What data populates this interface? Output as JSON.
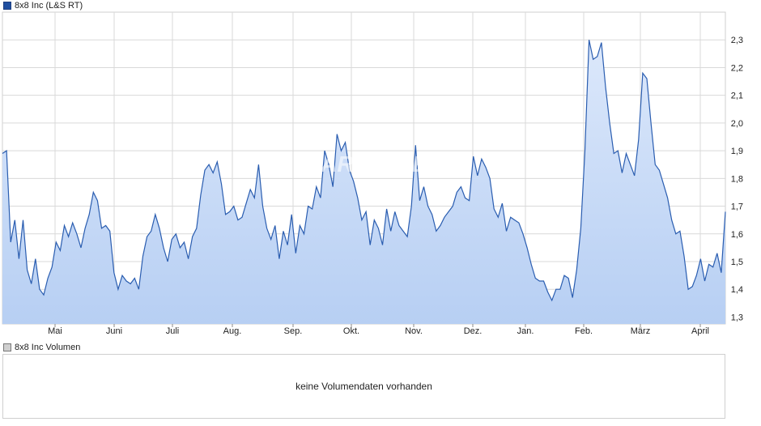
{
  "chart_data": {
    "type": "area",
    "series": [
      {
        "name": "8x8 Inc (L&S RT)",
        "values": [
          1.89,
          1.9,
          1.57,
          1.65,
          1.51,
          1.65,
          1.47,
          1.42,
          1.51,
          1.4,
          1.38,
          1.44,
          1.48,
          1.57,
          1.54,
          1.63,
          1.59,
          1.64,
          1.6,
          1.55,
          1.62,
          1.67,
          1.75,
          1.72,
          1.62,
          1.63,
          1.61,
          1.46,
          1.4,
          1.45,
          1.43,
          1.42,
          1.44,
          1.4,
          1.52,
          1.59,
          1.61,
          1.67,
          1.62,
          1.55,
          1.5,
          1.58,
          1.6,
          1.55,
          1.57,
          1.51,
          1.59,
          1.62,
          1.74,
          1.83,
          1.85,
          1.82,
          1.86,
          1.78,
          1.67,
          1.68,
          1.7,
          1.65,
          1.66,
          1.71,
          1.76,
          1.73,
          1.85,
          1.7,
          1.62,
          1.58,
          1.63,
          1.51,
          1.61,
          1.56,
          1.67,
          1.53,
          1.63,
          1.6,
          1.7,
          1.69,
          1.77,
          1.73,
          1.9,
          1.85,
          1.77,
          1.96,
          1.9,
          1.93,
          1.83,
          1.79,
          1.73,
          1.65,
          1.68,
          1.56,
          1.65,
          1.62,
          1.56,
          1.69,
          1.61,
          1.68,
          1.63,
          1.61,
          1.59,
          1.7,
          1.92,
          1.72,
          1.77,
          1.7,
          1.67,
          1.61,
          1.63,
          1.66,
          1.68,
          1.7,
          1.75,
          1.77,
          1.73,
          1.72,
          1.88,
          1.81,
          1.87,
          1.84,
          1.8,
          1.69,
          1.66,
          1.71,
          1.61,
          1.66,
          1.65,
          1.64,
          1.6,
          1.55,
          1.49,
          1.44,
          1.43,
          1.43,
          1.39,
          1.36,
          1.4,
          1.4,
          1.45,
          1.44,
          1.37,
          1.47,
          1.62,
          1.9,
          2.3,
          2.23,
          2.24,
          2.29,
          2.13,
          2.0,
          1.89,
          1.9,
          1.82,
          1.89,
          1.85,
          1.81,
          1.94,
          2.18,
          2.16,
          2.0,
          1.85,
          1.83,
          1.78,
          1.73,
          1.65,
          1.6,
          1.61,
          1.52,
          1.4,
          1.41,
          1.45,
          1.51,
          1.43,
          1.49,
          1.48,
          1.53,
          1.46,
          1.68
        ]
      }
    ],
    "x_tick_labels": [
      "Mai",
      "Juni",
      "Juli",
      "Aug.",
      "Sep.",
      "Okt.",
      "Nov.",
      "Dez.",
      "Jan.",
      "Feb.",
      "März",
      "April"
    ],
    "y_tick_labels": [
      "2,3",
      "2,2",
      "2,1",
      "2,0",
      "1,9",
      "1,8",
      "1,7",
      "1,6",
      "1,5",
      "1,4",
      "1,3"
    ],
    "y_ticks": [
      2.3,
      2.2,
      2.1,
      2.0,
      1.9,
      1.8,
      1.7,
      1.6,
      1.5,
      1.4,
      1.3
    ],
    "ylim": [
      1.275,
      2.4
    ],
    "grid": true,
    "legend_position": "top-left",
    "colors": {
      "line": "#2a5db0",
      "fill_top": "#dce8fb",
      "fill_bottom": "#b7cff3",
      "grid": "#d9d9d9"
    },
    "watermark": "ARIVA.DE"
  },
  "volume": {
    "legend": "8x8 Inc Volumen",
    "message": "keine Volumendaten vorhanden"
  }
}
